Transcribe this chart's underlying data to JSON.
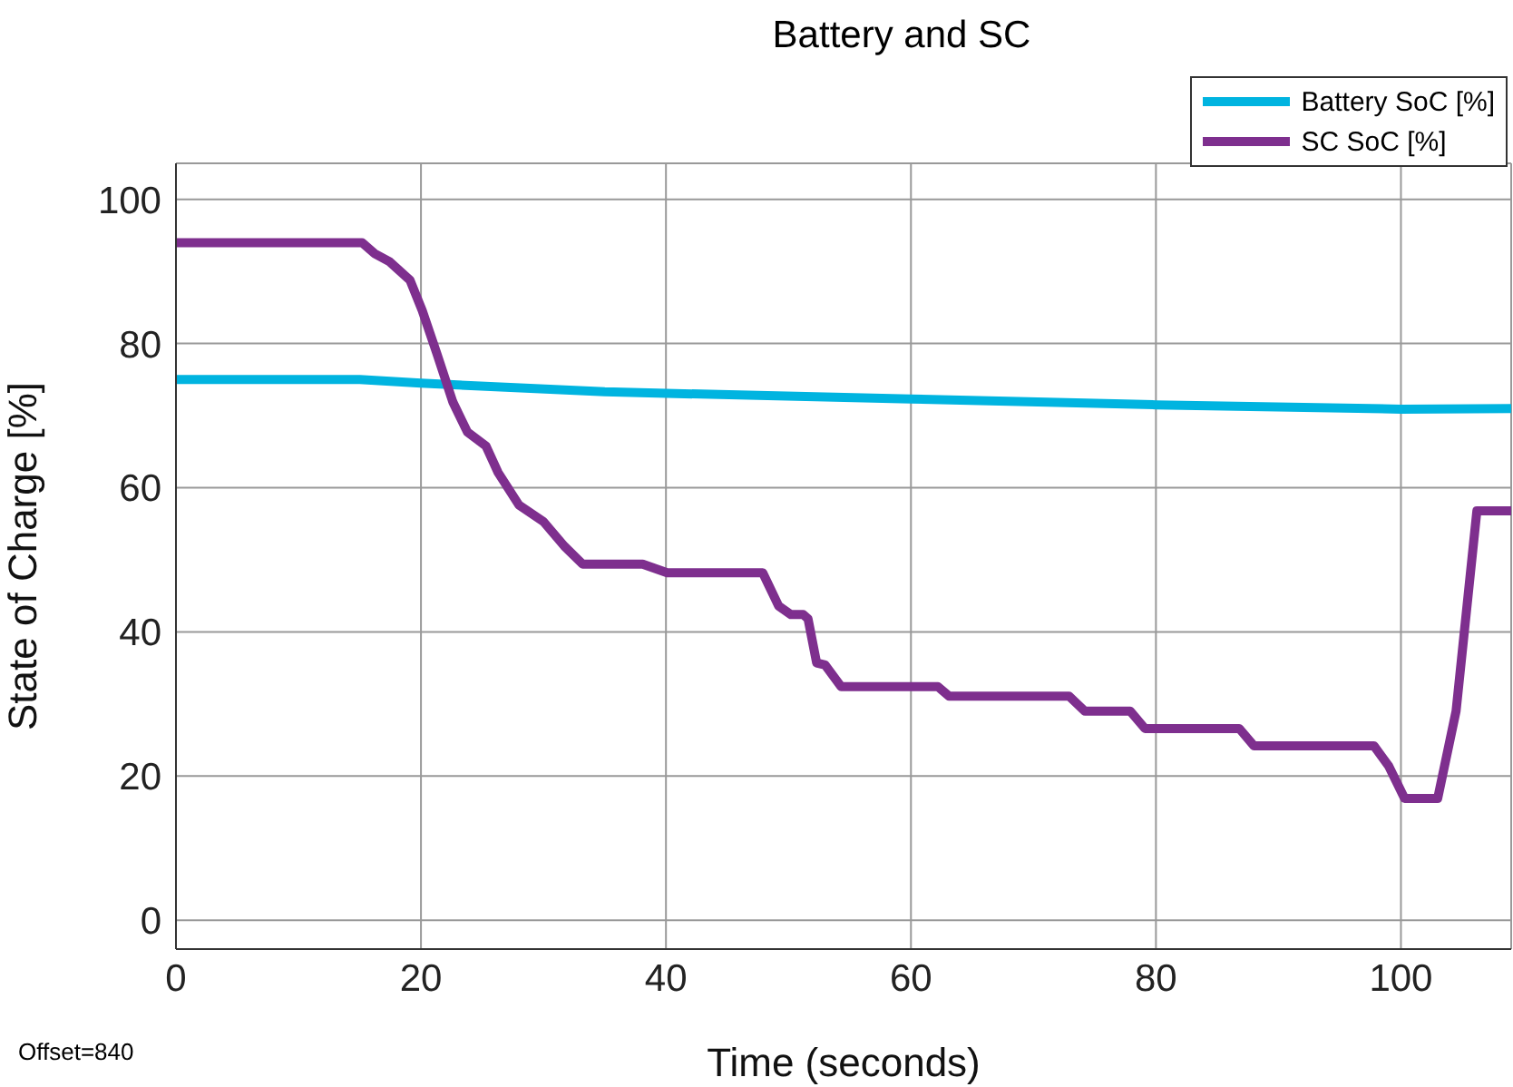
{
  "chart_data": {
    "type": "line",
    "title": "Battery and SC",
    "xlabel": "Time (seconds)",
    "ylabel": "State of Charge [%]",
    "annotations": [
      "Offset=840"
    ],
    "xlim": [
      0,
      109
    ],
    "xticks": [
      0,
      20,
      40,
      60,
      80,
      100
    ],
    "ylim": [
      -4,
      105
    ],
    "yticks": [
      0,
      20,
      40,
      60,
      80,
      100
    ],
    "grid": true,
    "legend": "top right",
    "marker": "none",
    "line_style": "solid",
    "series": [
      {
        "name": "Battery SoC [%]",
        "color": "#00b4e0",
        "x": [
          0,
          15,
          20,
          35,
          60,
          80,
          100,
          109
        ],
        "values": [
          75,
          75,
          74.5,
          73.3,
          72.3,
          71.5,
          70.9,
          71
        ]
      },
      {
        "name": "SC SoC [%]",
        "color": "#7e2f8e",
        "x": [
          0,
          15.2,
          16.2,
          17.4,
          19.1,
          20.1,
          21.3,
          22.6,
          23.8,
          25.3,
          26.3,
          28,
          30,
          31.7,
          33.2,
          38.1,
          40.1,
          47.9,
          49.2,
          50.2,
          51.2,
          51.6,
          52.3,
          53,
          54.3,
          62.2,
          63.1,
          72.9,
          74.2,
          77.9,
          79.1,
          86.8,
          88,
          97.8,
          99,
          100.3,
          103,
          104.5,
          106.2,
          109
        ],
        "values": [
          94,
          94,
          92.5,
          91.4,
          88.8,
          84.6,
          78.6,
          71.9,
          67.7,
          65.8,
          62.1,
          57.6,
          55.3,
          51.9,
          49.4,
          49.4,
          48.2,
          48.2,
          43.6,
          42.4,
          42.4,
          41.8,
          35.7,
          35.4,
          32.4,
          32.4,
          31.1,
          31.1,
          29,
          29,
          26.6,
          26.6,
          24.2,
          24.2,
          21.4,
          16.9,
          16.9,
          29,
          56.8,
          56.8
        ]
      }
    ]
  }
}
